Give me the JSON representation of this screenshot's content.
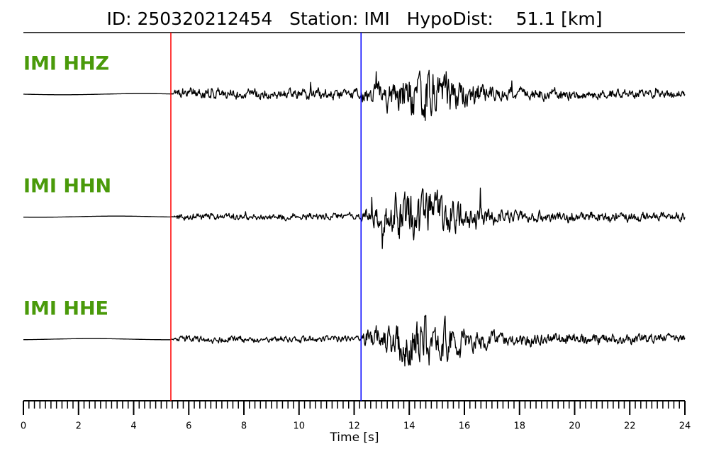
{
  "chart_data": {
    "type": "waveform",
    "title": "ID: 250320212454   Station: IMI   HypoDist:    51.1 [km]",
    "x_label": "Time [s]",
    "xlim": [
      0,
      24
    ],
    "xticks": [
      0,
      2,
      4,
      6,
      8,
      10,
      12,
      14,
      16,
      18,
      20,
      22,
      24
    ],
    "minor_tick_step": 0.2,
    "traces": [
      {
        "name": "IMI HHZ",
        "color": "#000000",
        "label_color": "#4a9a0a"
      },
      {
        "name": "IMI HHN",
        "color": "#000000",
        "label_color": "#4a9a0a"
      },
      {
        "name": "IMI HHE",
        "color": "#000000",
        "label_color": "#4a9a0a"
      }
    ],
    "markers": [
      {
        "x": 5.35,
        "color": "#ff0000"
      },
      {
        "x": 12.25,
        "color": "#0000ff"
      }
    ]
  }
}
